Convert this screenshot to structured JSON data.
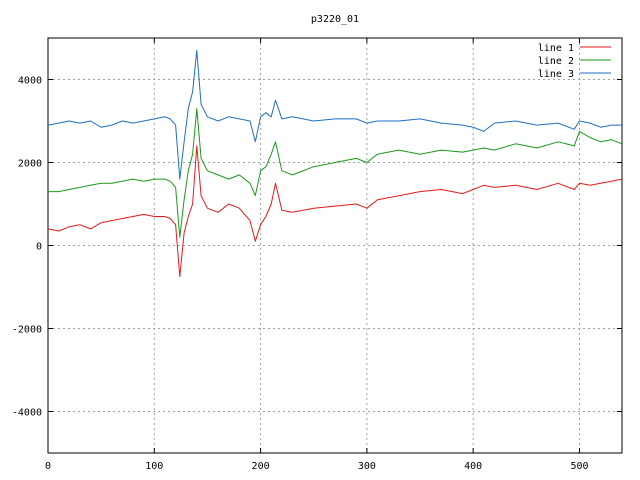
{
  "chart_data": {
    "type": "line",
    "title": "p3220_01",
    "xlabel": "",
    "ylabel": "",
    "xlim": [
      0,
      540
    ],
    "ylim": [
      -5000,
      5000
    ],
    "x_ticks": [
      0,
      100,
      200,
      300,
      400,
      500
    ],
    "y_ticks": [
      -4000,
      -2000,
      0,
      2000,
      4000
    ],
    "grid": true,
    "legend_position": "top-right",
    "series": [
      {
        "name": "line 1",
        "color": "#e41a1c",
        "x": [
          0,
          10,
          20,
          30,
          40,
          50,
          60,
          70,
          80,
          90,
          100,
          110,
          115,
          120,
          124,
          128,
          132,
          136,
          140,
          144,
          150,
          160,
          170,
          180,
          190,
          195,
          200,
          205,
          210,
          214,
          220,
          230,
          250,
          270,
          290,
          300,
          310,
          330,
          350,
          370,
          390,
          400,
          410,
          420,
          440,
          460,
          480,
          495,
          500,
          510,
          520,
          530,
          540
        ],
        "y": [
          400,
          350,
          450,
          500,
          400,
          550,
          600,
          650,
          700,
          750,
          700,
          700,
          650,
          500,
          -750,
          300,
          700,
          1000,
          2400,
          1200,
          900,
          800,
          1000,
          900,
          600,
          100,
          500,
          700,
          1000,
          1500,
          850,
          800,
          900,
          950,
          1000,
          900,
          1100,
          1200,
          1300,
          1350,
          1250,
          1350,
          1450,
          1400,
          1450,
          1350,
          1500,
          1350,
          1500,
          1450,
          1500,
          1550,
          1600
        ]
      },
      {
        "name": "line 2",
        "color": "#1a9a1a",
        "x": [
          0,
          10,
          20,
          30,
          40,
          50,
          60,
          70,
          80,
          90,
          100,
          110,
          115,
          120,
          124,
          128,
          132,
          136,
          140,
          144,
          150,
          160,
          170,
          180,
          190,
          195,
          200,
          205,
          210,
          214,
          220,
          230,
          250,
          270,
          290,
          300,
          310,
          330,
          350,
          370,
          390,
          400,
          410,
          420,
          440,
          460,
          480,
          495,
          500,
          510,
          520,
          530,
          540
        ],
        "y": [
          1300,
          1300,
          1350,
          1400,
          1450,
          1500,
          1500,
          1550,
          1600,
          1550,
          1600,
          1600,
          1550,
          1400,
          200,
          1100,
          1800,
          2200,
          3300,
          2100,
          1800,
          1700,
          1600,
          1700,
          1500,
          1200,
          1800,
          1900,
          2200,
          2500,
          1800,
          1700,
          1900,
          2000,
          2100,
          2000,
          2200,
          2300,
          2200,
          2300,
          2250,
          2300,
          2350,
          2300,
          2450,
          2350,
          2500,
          2400,
          2750,
          2600,
          2500,
          2550,
          2450
        ]
      },
      {
        "name": "line 3",
        "color": "#1f6fc5",
        "x": [
          0,
          10,
          20,
          30,
          40,
          50,
          60,
          70,
          80,
          90,
          100,
          110,
          115,
          120,
          124,
          128,
          132,
          136,
          140,
          144,
          150,
          160,
          170,
          180,
          190,
          195,
          200,
          205,
          210,
          214,
          220,
          230,
          250,
          270,
          290,
          300,
          310,
          330,
          350,
          370,
          390,
          400,
          410,
          420,
          440,
          460,
          480,
          495,
          500,
          510,
          520,
          530,
          540
        ],
        "y": [
          2900,
          2950,
          3000,
          2950,
          3000,
          2850,
          2900,
          3000,
          2950,
          3000,
          3050,
          3100,
          3050,
          2900,
          1600,
          2500,
          3300,
          3700,
          4700,
          3400,
          3100,
          3000,
          3100,
          3050,
          3000,
          2500,
          3100,
          3200,
          3100,
          3500,
          3050,
          3100,
          3000,
          3050,
          3050,
          2950,
          3000,
          3000,
          3050,
          2950,
          2900,
          2850,
          2750,
          2950,
          3000,
          2900,
          2950,
          2800,
          3000,
          2950,
          2850,
          2900,
          2900
        ]
      }
    ]
  }
}
